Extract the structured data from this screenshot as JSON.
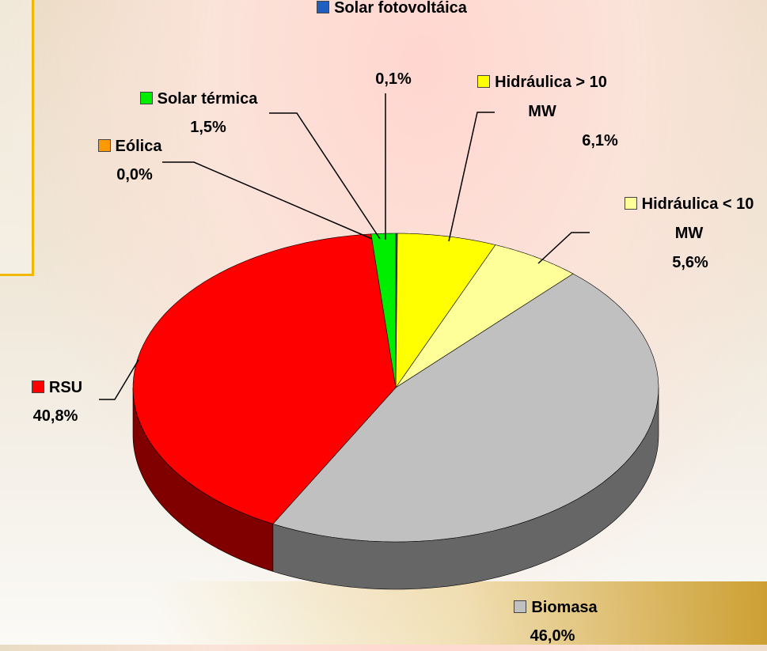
{
  "chart_data": {
    "type": "pie",
    "categories": [
      "Solar fotovoltáica",
      "Hidráulica > 10 MW",
      "Hidráulica < 10 MW",
      "Biomasa",
      "RSU",
      "Eólica",
      "Solar térmica"
    ],
    "values": [
      0.1,
      6.1,
      5.6,
      46.0,
      40.8,
      0.0,
      1.5
    ],
    "value_labels": [
      "0,1%",
      "6,1%",
      "5,6%",
      "46,0%",
      "40,8%",
      "0,0%",
      "1,5%"
    ],
    "colors": [
      "#1f5fbf",
      "#ffff00",
      "#ffff99",
      "#c0c0c0",
      "#ff0000",
      "#ff9900",
      "#00ee00"
    ],
    "side_colors": [
      "#0f2f60",
      "#808000",
      "#80804c",
      "#666666",
      "#800000",
      "#804c00",
      "#007700"
    ]
  }
}
